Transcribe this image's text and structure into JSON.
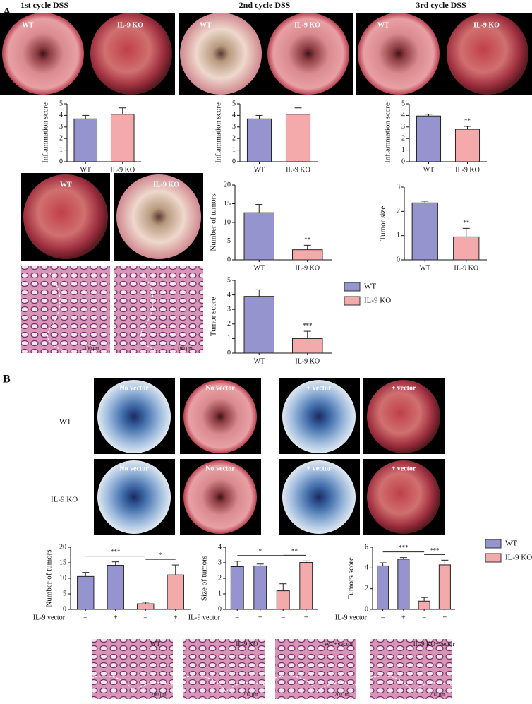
{
  "panel_labels": [
    "A",
    "B"
  ],
  "cycle_titles": [
    "1st cycle DSS",
    "2nd cycle DSS",
    "3rd cycle DSS"
  ],
  "a_image_labels": [
    "WT",
    "IL-9 KO",
    "WT",
    "IL-9 KO",
    "WT",
    "IL-9 KO",
    "WT",
    "IL-9 KO"
  ],
  "a_scale_bars": [
    "100 μm",
    "100 μm"
  ],
  "b_row_labels": [
    "WT",
    "IL-9 KO"
  ],
  "b_image_labels": [
    "No vector",
    "No vector",
    "+ vector",
    "+ vector",
    "No vector",
    "No vector",
    "+ vector",
    "+ vector"
  ],
  "b_histology_labels": [
    "WT",
    "IL-9 KO",
    "WT+vector",
    "IL-9 KO+vector"
  ],
  "b_scale_bars": [
    "200 μm",
    "200 μm",
    "200 μm",
    "200 μm"
  ],
  "legends": [
    [
      {
        "label": "WT",
        "color": "#9594cf"
      },
      {
        "label": "IL-9 KO",
        "color": "#f4aaaa"
      }
    ],
    [
      {
        "label": "WT",
        "color": "#9594cf"
      },
      {
        "label": "IL-9 KO",
        "color": "#f4aaaa"
      }
    ]
  ],
  "chart_data": [
    {
      "type": "bar",
      "y_label": "Inflammation score",
      "categories": [
        "WT",
        "IL-9 KO"
      ],
      "values": [
        3.7,
        4.1
      ],
      "errors": [
        0.3,
        0.55
      ],
      "colors": [
        "#9594cf",
        "#f4aaaa"
      ],
      "ylim": [
        0,
        5
      ],
      "yticks": [
        0,
        1,
        2,
        3,
        4,
        5
      ]
    },
    {
      "type": "bar",
      "y_label": "Inflammation score",
      "categories": [
        "WT",
        "IL-9 KO"
      ],
      "values": [
        3.7,
        4.1
      ],
      "errors": [
        0.3,
        0.55
      ],
      "colors": [
        "#9594cf",
        "#f4aaaa"
      ],
      "ylim": [
        0,
        5
      ],
      "yticks": [
        0,
        1,
        2,
        3,
        4,
        5
      ]
    },
    {
      "type": "bar",
      "y_label": "Inflammation score",
      "categories": [
        "WT",
        "IL-9 KO"
      ],
      "values": [
        3.95,
        2.8
      ],
      "errors": [
        0.15,
        0.25
      ],
      "colors": [
        "#9594cf",
        "#f4aaaa"
      ],
      "ylim": [
        0,
        5
      ],
      "yticks": [
        0,
        1,
        2,
        3,
        4,
        5
      ],
      "significance": [
        "**"
      ]
    },
    {
      "type": "bar",
      "y_label": "Number of tumors",
      "categories": [
        "WT",
        "IL-9 KO"
      ],
      "values": [
        12.6,
        2.7
      ],
      "errors": [
        2.2,
        1.2
      ],
      "colors": [
        "#9594cf",
        "#f4aaaa"
      ],
      "ylim": [
        0,
        20
      ],
      "yticks": [
        0,
        5,
        10,
        15,
        20
      ],
      "significance": [
        "**"
      ]
    },
    {
      "type": "bar",
      "y_label": "Tumor size",
      "categories": [
        "WT",
        "IL-9 KO"
      ],
      "values": [
        2.35,
        0.95
      ],
      "errors": [
        0.07,
        0.35
      ],
      "colors": [
        "#9594cf",
        "#f4aaaa"
      ],
      "ylim": [
        0,
        3
      ],
      "yticks": [
        0,
        1,
        2,
        3
      ],
      "significance": [
        "**"
      ]
    },
    {
      "type": "bar",
      "y_label": "Tumor score",
      "categories": [
        "WT",
        "IL-9 KO"
      ],
      "values": [
        3.9,
        1.0
      ],
      "errors": [
        0.45,
        0.5
      ],
      "colors": [
        "#9594cf",
        "#f4aaaa"
      ],
      "ylim": [
        0,
        5
      ],
      "yticks": [
        0,
        1,
        2,
        3,
        4,
        5
      ],
      "significance": [
        "***"
      ]
    },
    {
      "type": "bar",
      "y_label": "Number of tumors",
      "x_label": "IL-9 vector",
      "categories": [
        "–",
        "+",
        "–",
        "+"
      ],
      "values": [
        10.6,
        14.2,
        1.8,
        11.1
      ],
      "errors": [
        1.3,
        1.1,
        0.5,
        3.2
      ],
      "colors": [
        "#9594cf",
        "#9594cf",
        "#f4aaaa",
        "#f4aaaa"
      ],
      "ylim": [
        0,
        20
      ],
      "yticks": [
        0,
        5,
        10,
        15,
        20
      ],
      "significance": [
        "***",
        "*"
      ]
    },
    {
      "type": "bar",
      "y_label": "Size of tumors",
      "x_label": "IL-9 vector",
      "categories": [
        "–",
        "+",
        "–",
        "+"
      ],
      "values": [
        2.75,
        2.8,
        1.2,
        3.02
      ],
      "errors": [
        0.35,
        0.12,
        0.45,
        0.1
      ],
      "colors": [
        "#9594cf",
        "#9594cf",
        "#f4aaaa",
        "#f4aaaa"
      ],
      "ylim": [
        0,
        4
      ],
      "yticks": [
        0,
        1,
        2,
        3,
        4
      ],
      "significance": [
        "*",
        "**"
      ]
    },
    {
      "type": "bar",
      "y_label": "Tumors score",
      "x_label": "IL-9 vector",
      "categories": [
        "–",
        "+",
        "–",
        "+"
      ],
      "values": [
        4.2,
        4.85,
        0.8,
        4.3
      ],
      "errors": [
        0.3,
        0.15,
        0.35,
        0.45
      ],
      "colors": [
        "#9594cf",
        "#9594cf",
        "#f4aaaa",
        "#f4aaaa"
      ],
      "ylim": [
        0,
        6
      ],
      "yticks": [
        0,
        2,
        4,
        6
      ],
      "significance": [
        "***",
        "***"
      ]
    }
  ]
}
